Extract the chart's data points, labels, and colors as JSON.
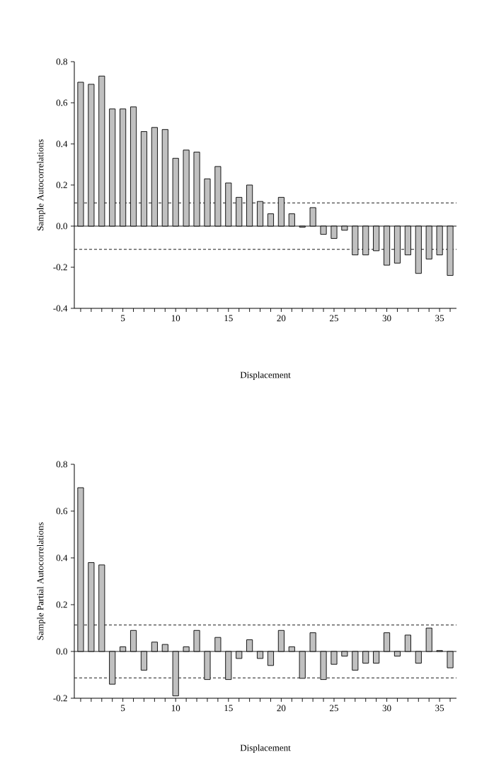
{
  "chart_data": [
    {
      "type": "bar",
      "xlabel": "Displacement",
      "ylabel": "Sample Autocorrelations",
      "color": "#c0c0c0",
      "x": [
        1,
        2,
        3,
        4,
        5,
        6,
        7,
        8,
        9,
        10,
        11,
        12,
        13,
        14,
        15,
        16,
        17,
        18,
        19,
        20,
        21,
        22,
        23,
        24,
        25,
        26,
        27,
        28,
        29,
        30,
        31,
        32,
        33,
        34,
        35,
        36
      ],
      "values": [
        0.7,
        0.69,
        0.73,
        0.57,
        0.57,
        0.58,
        0.46,
        0.48,
        0.47,
        0.33,
        0.37,
        0.36,
        0.23,
        0.29,
        0.21,
        0.14,
        0.2,
        0.12,
        0.06,
        0.14,
        0.06,
        -0.005,
        0.09,
        -0.04,
        -0.06,
        -0.02,
        -0.14,
        -0.14,
        -0.12,
        -0.19,
        -0.18,
        -0.14,
        -0.23,
        -0.16,
        -0.14,
        -0.24
      ],
      "xlim": [
        0.4,
        36.6
      ],
      "ylim": [
        -0.4,
        0.8
      ],
      "xticks": [
        {
          "value": 1,
          "label": null
        },
        {
          "value": 2,
          "label": null
        },
        {
          "value": 3,
          "label": null
        },
        {
          "value": 4,
          "label": null
        },
        5,
        {
          "value": 6,
          "label": null
        },
        {
          "value": 7,
          "label": null
        },
        {
          "value": 8,
          "label": null
        },
        {
          "value": 9,
          "label": null
        },
        10,
        {
          "value": 11,
          "label": null
        },
        {
          "value": 12,
          "label": null
        },
        {
          "value": 13,
          "label": null
        },
        {
          "value": 14,
          "label": null
        },
        15,
        {
          "value": 16,
          "label": null
        },
        {
          "value": 17,
          "label": null
        },
        {
          "value": 18,
          "label": null
        },
        {
          "value": 19,
          "label": null
        },
        20,
        {
          "value": 21,
          "label": null
        },
        {
          "value": 22,
          "label": null
        },
        {
          "value": 23,
          "label": null
        },
        {
          "value": 24,
          "label": null
        },
        25,
        {
          "value": 26,
          "label": null
        },
        {
          "value": 27,
          "label": null
        },
        {
          "value": 28,
          "label": null
        },
        {
          "value": 29,
          "label": null
        },
        30,
        {
          "value": 31,
          "label": null
        },
        {
          "value": 32,
          "label": null
        },
        {
          "value": 33,
          "label": null
        },
        {
          "value": 34,
          "label": null
        },
        35,
        {
          "value": 36,
          "label": null
        }
      ],
      "yticks": [
        -0.4,
        -0.2,
        {
          "value": 0,
          "label": "0.0"
        },
        0.2,
        0.4,
        0.6,
        0.8
      ],
      "ref_lines": [
        {
          "axis": "y",
          "value": 0,
          "line_style": "solid"
        },
        {
          "axis": "y",
          "value": 0.113,
          "line_style": "dashed"
        },
        {
          "axis": "y",
          "value": -0.113,
          "line_style": "dashed"
        }
      ]
    },
    {
      "type": "bar",
      "xlabel": "Displacement",
      "ylabel": "Sample Partial Autocorrelations",
      "color": "#c0c0c0",
      "x": [
        1,
        2,
        3,
        4,
        5,
        6,
        7,
        8,
        9,
        10,
        11,
        12,
        13,
        14,
        15,
        16,
        17,
        18,
        19,
        20,
        21,
        22,
        23,
        24,
        25,
        26,
        27,
        28,
        29,
        30,
        31,
        32,
        33,
        34,
        35,
        36
      ],
      "values": [
        0.7,
        0.38,
        0.37,
        -0.14,
        0.02,
        0.09,
        -0.08,
        0.04,
        0.03,
        -0.19,
        0.02,
        0.09,
        -0.12,
        0.06,
        -0.12,
        -0.03,
        0.05,
        -0.03,
        -0.06,
        0.09,
        0.02,
        -0.115,
        0.08,
        -0.12,
        -0.055,
        -0.02,
        -0.08,
        -0.05,
        -0.05,
        0.08,
        -0.02,
        0.07,
        -0.05,
        0.1,
        0.004,
        -0.07
      ],
      "xlim": [
        0.4,
        36.6
      ],
      "ylim": [
        -0.2,
        0.8
      ],
      "xticks": [
        {
          "value": 1,
          "label": null
        },
        {
          "value": 2,
          "label": null
        },
        {
          "value": 3,
          "label": null
        },
        {
          "value": 4,
          "label": null
        },
        5,
        {
          "value": 6,
          "label": null
        },
        {
          "value": 7,
          "label": null
        },
        {
          "value": 8,
          "label": null
        },
        {
          "value": 9,
          "label": null
        },
        10,
        {
          "value": 11,
          "label": null
        },
        {
          "value": 12,
          "label": null
        },
        {
          "value": 13,
          "label": null
        },
        {
          "value": 14,
          "label": null
        },
        15,
        {
          "value": 16,
          "label": null
        },
        {
          "value": 17,
          "label": null
        },
        {
          "value": 18,
          "label": null
        },
        {
          "value": 19,
          "label": null
        },
        20,
        {
          "value": 21,
          "label": null
        },
        {
          "value": 22,
          "label": null
        },
        {
          "value": 23,
          "label": null
        },
        {
          "value": 24,
          "label": null
        },
        25,
        {
          "value": 26,
          "label": null
        },
        {
          "value": 27,
          "label": null
        },
        {
          "value": 28,
          "label": null
        },
        {
          "value": 29,
          "label": null
        },
        30,
        {
          "value": 31,
          "label": null
        },
        {
          "value": 32,
          "label": null
        },
        {
          "value": 33,
          "label": null
        },
        {
          "value": 34,
          "label": null
        },
        35,
        {
          "value": 36,
          "label": null
        }
      ],
      "yticks": [
        -0.2,
        {
          "value": 0,
          "label": "0.0"
        },
        0.2,
        0.4,
        0.6,
        0.8
      ],
      "ref_lines": [
        {
          "axis": "y",
          "value": 0,
          "line_style": "solid"
        },
        {
          "axis": "y",
          "value": 0.113,
          "line_style": "dashed"
        },
        {
          "axis": "y",
          "value": -0.113,
          "line_style": "dashed"
        }
      ]
    }
  ]
}
